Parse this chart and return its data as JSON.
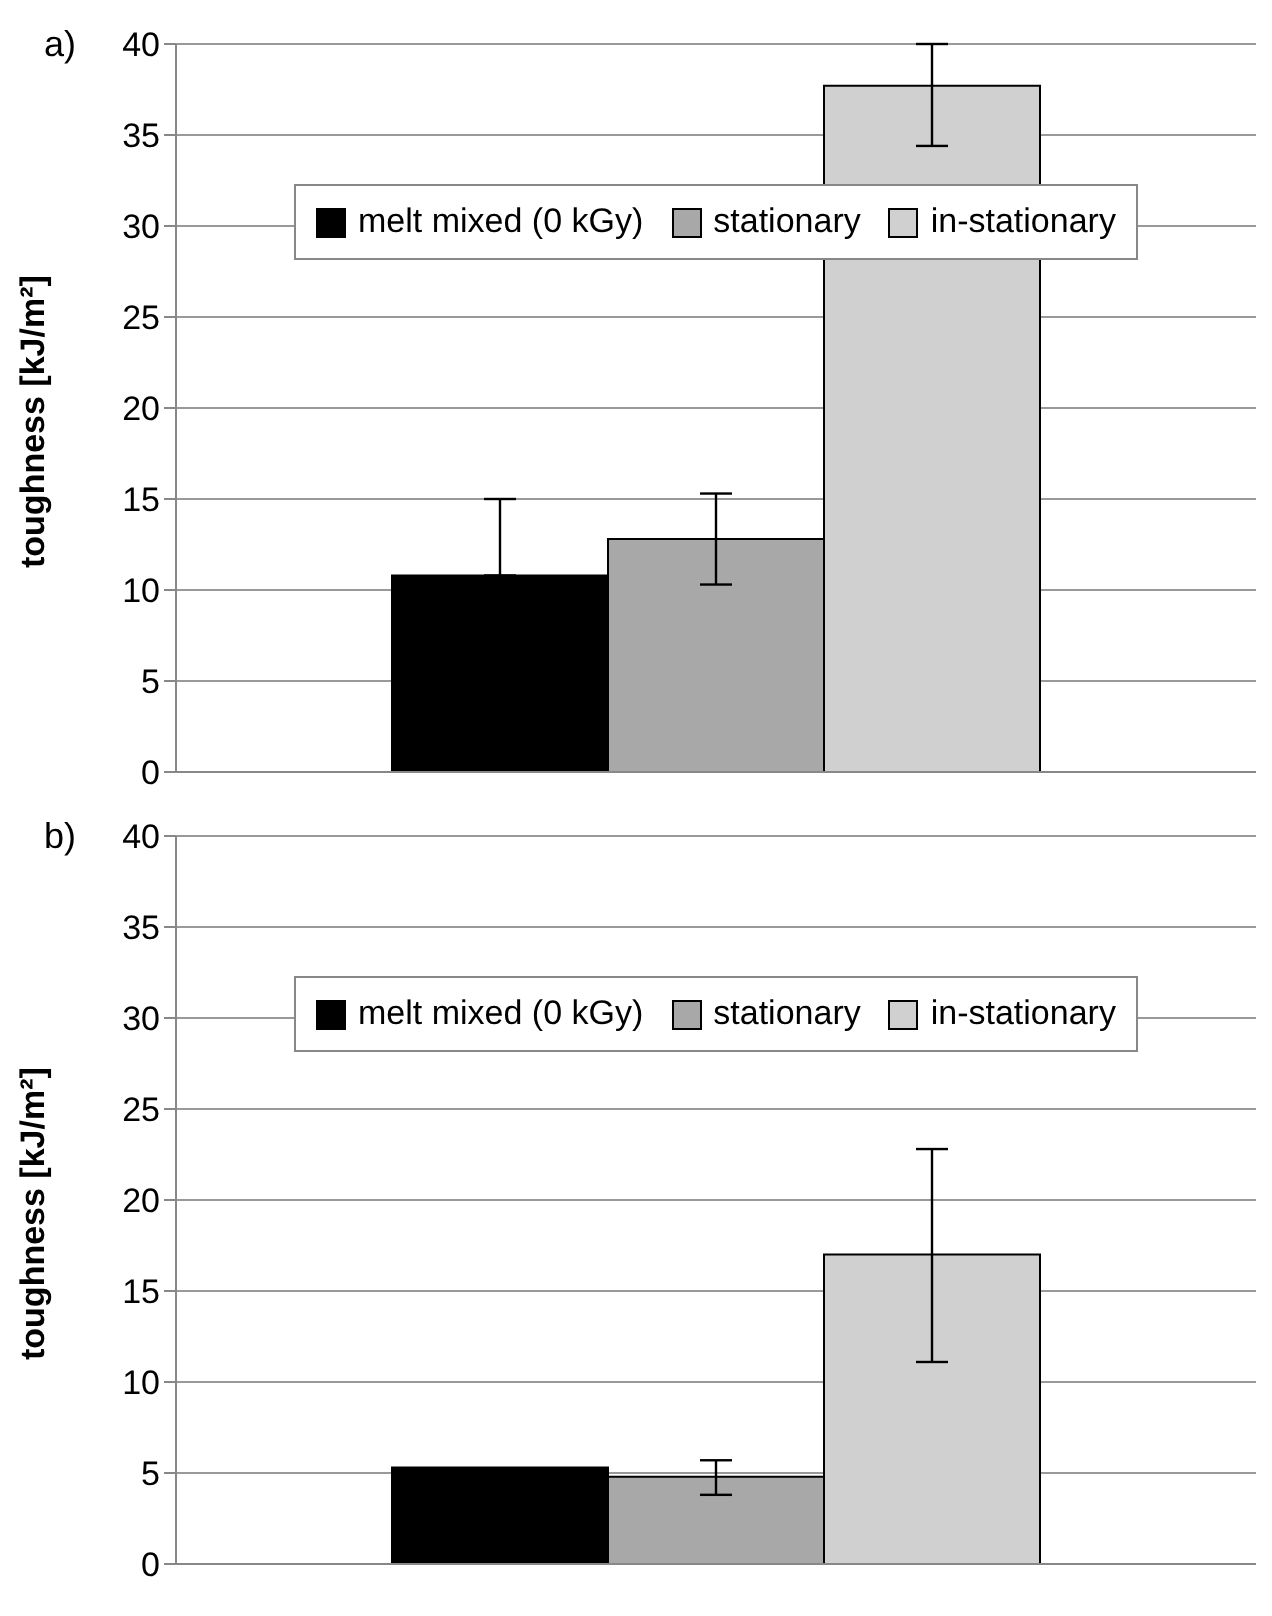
{
  "chart_data": [
    {
      "type": "bar",
      "title": "a)",
      "ylabel": "toughness [kJ/m²]",
      "categories": [
        null
      ],
      "ylim": [
        0,
        40
      ],
      "yticks": [
        0,
        5,
        10,
        15,
        20,
        25,
        30,
        35,
        40
      ],
      "grid": "y",
      "legend": "top",
      "series": [
        {
          "name": "melt mixed (0 kGy)",
          "color": "#000000",
          "values": [
            10.8
          ],
          "errors": [
            [
              10.8,
              15
            ]
          ]
        },
        {
          "name": "stationary",
          "color": "#a8a8a8",
          "values": [
            12.8
          ],
          "errors": [
            2.5
          ]
        },
        {
          "name": "in-stationary",
          "color": "#d0d0d0",
          "values": [
            37.7
          ],
          "errors": [
            [
              34.4,
              40
            ]
          ]
        }
      ]
    },
    {
      "type": "bar",
      "title": "b)",
      "ylabel": "toughness [kJ/m²]",
      "categories": [
        null
      ],
      "ylim": [
        0,
        40
      ],
      "yticks": [
        0,
        5,
        10,
        15,
        20,
        25,
        30,
        35,
        40
      ],
      "grid": "y",
      "legend": "top",
      "series": [
        {
          "name": "melt mixed (0 kGy)",
          "color": "#000000",
          "values": [
            5.3
          ]
        },
        {
          "name": "stationary",
          "color": "#a8a8a8",
          "values": [
            4.8
          ],
          "errors": [
            [
              3.8,
              5.7
            ]
          ]
        },
        {
          "name": "in-stationary",
          "color": "#d0d0d0",
          "values": [
            17.0
          ],
          "errors": [
            [
              11.1,
              22.8
            ]
          ]
        }
      ]
    }
  ]
}
